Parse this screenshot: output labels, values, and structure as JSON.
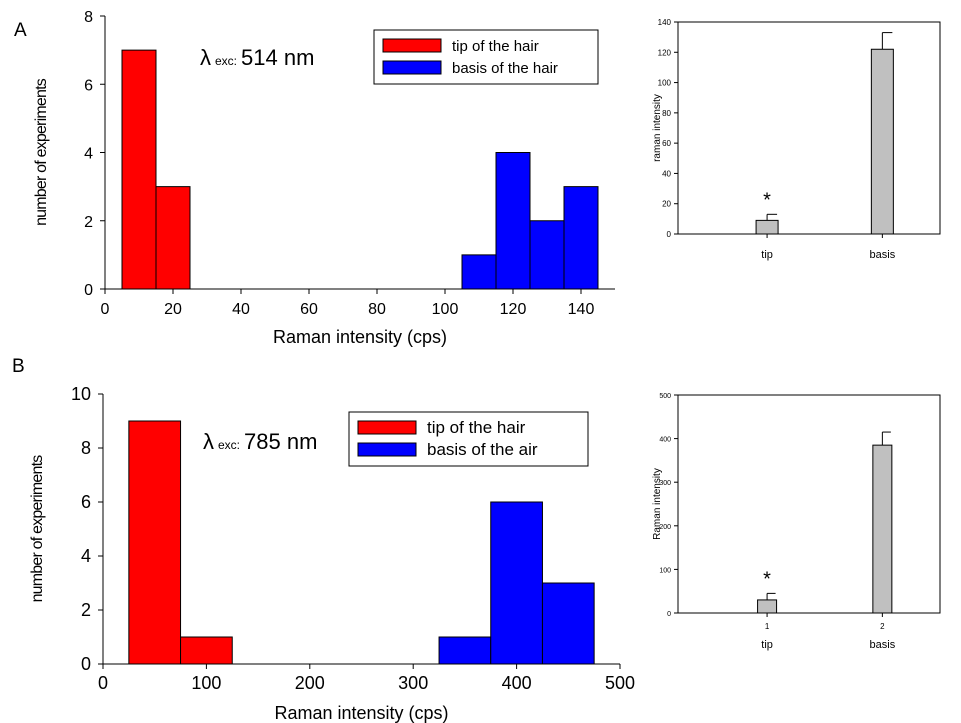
{
  "panels": [
    {
      "label": "A",
      "histogram": {
        "type": "bar",
        "xlabel": "Raman intensity (cps)",
        "ylabel": "number of experiments",
        "xlim": [
          0,
          150
        ],
        "ylim": [
          0,
          8
        ],
        "xticks": [
          0,
          20,
          40,
          60,
          80,
          100,
          120,
          140
        ],
        "yticks": [
          0,
          2,
          4,
          6,
          8
        ],
        "annotation": {
          "lambda": "λ",
          "sub": "exc:",
          "value": "514 nm"
        },
        "legend": {
          "placement": "top-right",
          "entries": [
            {
              "label": "tip of the hair",
              "color": "#ff0000"
            },
            {
              "label": "basis of the hair",
              "color": "#0000ff"
            }
          ]
        },
        "series": [
          {
            "color": "#ff0000",
            "bins": [
              {
                "x0": 5,
                "x1": 15,
                "count": 7
              },
              {
                "x0": 15,
                "x1": 25,
                "count": 3
              }
            ]
          },
          {
            "color": "#0000ff",
            "bins": [
              {
                "x0": 105,
                "x1": 115,
                "count": 1
              },
              {
                "x0": 115,
                "x1": 125,
                "count": 4
              },
              {
                "x0": 125,
                "x1": 135,
                "count": 2
              },
              {
                "x0": 135,
                "x1": 145,
                "count": 3
              }
            ]
          }
        ]
      },
      "barchart": {
        "type": "bar",
        "ylabel": "raman intensity",
        "ylim": [
          0,
          140
        ],
        "yticks": [
          0,
          20,
          40,
          60,
          80,
          100,
          120,
          140
        ],
        "categories": [
          "tip",
          "basis"
        ],
        "category_numbers": [
          "",
          ""
        ],
        "values": [
          9,
          122
        ],
        "errors": [
          4,
          11
        ],
        "significance": [
          "*",
          ""
        ],
        "bar_color": "#c0c0c0"
      }
    },
    {
      "label": "B",
      "histogram": {
        "type": "bar",
        "xlabel": "Raman intensity (cps)",
        "ylabel": "number of experiments",
        "xlim": [
          0,
          500
        ],
        "ylim": [
          0,
          10
        ],
        "xticks": [
          0,
          100,
          200,
          300,
          400,
          500
        ],
        "yticks": [
          0,
          2,
          4,
          6,
          8,
          10
        ],
        "annotation": {
          "lambda": "λ",
          "sub": "exc:",
          "value": "785 nm"
        },
        "legend": {
          "placement": "top-right",
          "entries": [
            {
              "label": "tip of the hair",
              "color": "#ff0000"
            },
            {
              "label": "basis of the air",
              "color": "#0000ff"
            }
          ]
        },
        "series": [
          {
            "color": "#ff0000",
            "bins": [
              {
                "x0": 25,
                "x1": 75,
                "count": 9
              },
              {
                "x0": 75,
                "x1": 125,
                "count": 1
              }
            ]
          },
          {
            "color": "#0000ff",
            "bins": [
              {
                "x0": 325,
                "x1": 375,
                "count": 1
              },
              {
                "x0": 375,
                "x1": 425,
                "count": 6
              },
              {
                "x0": 425,
                "x1": 475,
                "count": 3
              }
            ]
          }
        ]
      },
      "barchart": {
        "type": "bar",
        "ylabel": "Raman intensity",
        "ylim": [
          0,
          500
        ],
        "yticks": [
          0,
          100,
          200,
          300,
          400,
          500
        ],
        "categories": [
          "tip",
          "basis"
        ],
        "category_numbers": [
          "1",
          "2"
        ],
        "values": [
          30,
          385
        ],
        "errors": [
          15,
          30
        ],
        "significance": [
          "*",
          ""
        ],
        "bar_color": "#c0c0c0"
      }
    }
  ],
  "chart_data": [
    {
      "type": "bar",
      "xlabel": "Raman intensity (cps)",
      "ylabel": "number of experiments",
      "xlim": [
        0,
        150
      ],
      "ylim": [
        0,
        8
      ],
      "categories": [
        "5-15",
        "15-25",
        "105-115",
        "115-125",
        "125-135",
        "135-145"
      ],
      "series": [
        {
          "name": "tip of the hair",
          "values": [
            7,
            3,
            0,
            0,
            0,
            0
          ]
        },
        {
          "name": "basis of the hair",
          "values": [
            0,
            0,
            1,
            4,
            2,
            3
          ]
        }
      ]
    },
    {
      "type": "bar",
      "ylabel": "raman intensity",
      "ylim": [
        0,
        140
      ],
      "categories": [
        "tip",
        "basis"
      ],
      "values": [
        9,
        122
      ],
      "errors": [
        4,
        11
      ]
    },
    {
      "type": "bar",
      "xlabel": "Raman intensity (cps)",
      "ylabel": "number of experiments",
      "xlim": [
        0,
        500
      ],
      "ylim": [
        0,
        10
      ],
      "categories": [
        "25-75",
        "75-125",
        "325-375",
        "375-425",
        "425-475"
      ],
      "series": [
        {
          "name": "tip of the hair",
          "values": [
            9,
            1,
            0,
            0,
            0
          ]
        },
        {
          "name": "basis of the air",
          "values": [
            0,
            0,
            1,
            6,
            3
          ]
        }
      ]
    },
    {
      "type": "bar",
      "ylabel": "Raman intensity",
      "ylim": [
        0,
        500
      ],
      "categories": [
        "tip",
        "basis"
      ],
      "values": [
        30,
        385
      ],
      "errors": [
        15,
        30
      ]
    }
  ]
}
